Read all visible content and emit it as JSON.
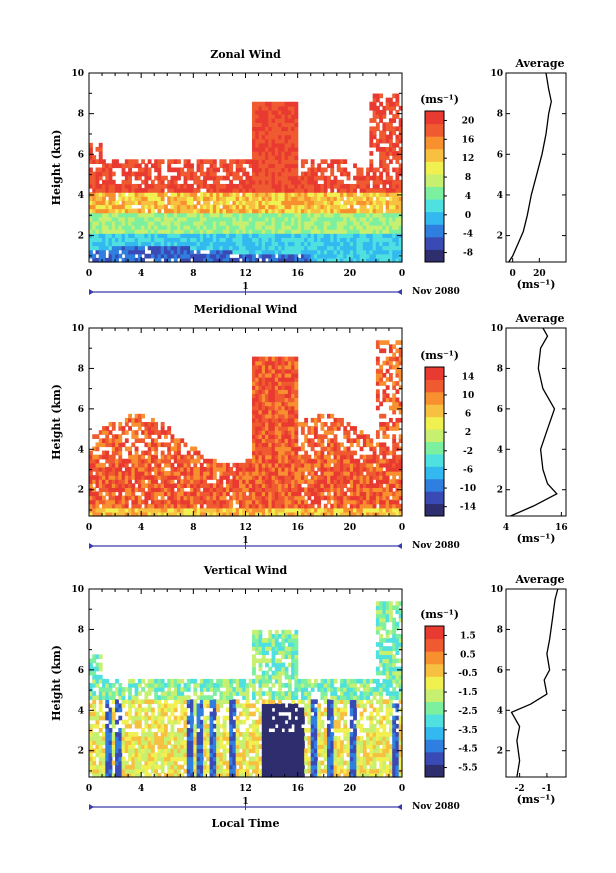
{
  "figure": {
    "date_label": "Nov 2080",
    "day_marker": "1",
    "xlabel_bottom": "Local Time",
    "avg_title": "Average",
    "units": "(ms⁻¹)"
  },
  "colors": {
    "scale": [
      "#2e2d6e",
      "#3a4ab5",
      "#2f7fe0",
      "#34b8f0",
      "#4fe0e0",
      "#7df0a0",
      "#c8f070",
      "#f0f050",
      "#f8c040",
      "#f89030",
      "#f05a30",
      "#e83a30"
    ],
    "white": "#ffffff",
    "axis": "#000000",
    "marker": "#3a3aa8"
  },
  "chart_data": [
    {
      "type": "heatmap",
      "title": "Zonal Wind",
      "ylabel": "Height (km)",
      "xlim": [
        0,
        24
      ],
      "ylim": [
        0.7,
        10
      ],
      "x_ticks": [
        "0",
        "4",
        "8",
        "12",
        "16",
        "20",
        "0"
      ],
      "y_ticks": [
        "2",
        "4",
        "6",
        "8",
        "10"
      ],
      "colorbar": {
        "label": "(ms⁻¹)",
        "ticks": [
          "20",
          "16",
          "12",
          "8",
          "4",
          "0",
          "-4",
          "-8"
        ],
        "range": [
          -10,
          22
        ]
      },
      "profile": {
        "title": "Average",
        "xlim": [
          -5,
          40
        ],
        "x_ticks": [
          "0",
          "20"
        ],
        "x_tick_values": [
          0,
          20
        ],
        "xlabel": "(ms⁻¹)",
        "y_ticks": [
          "2",
          "4",
          "6",
          "8",
          "10"
        ],
        "points": [
          [
            -3,
            0.7
          ],
          [
            0,
            1.0
          ],
          [
            4,
            1.6
          ],
          [
            8,
            2.2
          ],
          [
            11,
            3.0
          ],
          [
            14,
            4.0
          ],
          [
            18,
            5.0
          ],
          [
            22,
            6.0
          ],
          [
            25,
            7.0
          ],
          [
            27,
            8.0
          ],
          [
            29,
            8.6
          ],
          [
            27,
            9.2
          ],
          [
            25,
            10
          ]
        ]
      }
    },
    {
      "type": "heatmap",
      "title": "Meridional Wind",
      "ylabel": "Height (km)",
      "xlim": [
        0,
        24
      ],
      "ylim": [
        0.7,
        10
      ],
      "x_ticks": [
        "0",
        "4",
        "8",
        "12",
        "16",
        "20",
        "0"
      ],
      "y_ticks": [
        "2",
        "4",
        "6",
        "8",
        "10"
      ],
      "colorbar": {
        "label": "(ms⁻¹)",
        "ticks": [
          "14",
          "10",
          "6",
          "2",
          "-2",
          "-6",
          "-10",
          "-14"
        ],
        "range": [
          -16,
          16
        ]
      },
      "profile": {
        "title": "Average",
        "xlim": [
          4,
          17
        ],
        "x_ticks": [
          "4",
          "16"
        ],
        "x_tick_values": [
          4,
          16
        ],
        "xlabel": "(ms⁻¹)",
        "y_ticks": [
          "2",
          "4",
          "6",
          "8",
          "10"
        ],
        "points": [
          [
            5,
            0.7
          ],
          [
            10,
            1.2
          ],
          [
            15,
            1.8
          ],
          [
            13,
            2.3
          ],
          [
            12,
            3.0
          ],
          [
            11.5,
            4.0
          ],
          [
            13,
            5.0
          ],
          [
            14.5,
            6.0
          ],
          [
            12,
            7.0
          ],
          [
            11,
            8.0
          ],
          [
            11.5,
            9.0
          ],
          [
            13,
            9.6
          ],
          [
            12,
            10
          ]
        ]
      }
    },
    {
      "type": "heatmap",
      "title": "Vertical Wind",
      "ylabel": "Height (km)",
      "xlabel": "Local Time",
      "xlim": [
        0,
        24
      ],
      "ylim": [
        0.7,
        10
      ],
      "x_ticks": [
        "0",
        "4",
        "8",
        "12",
        "16",
        "20",
        "0"
      ],
      "y_ticks": [
        "2",
        "4",
        "6",
        "8",
        "10"
      ],
      "colorbar": {
        "label": "(ms⁻¹)",
        "ticks": [
          "1.5",
          "0.5",
          "-0.5",
          "-1.5",
          "-2.5",
          "-3.5",
          "-4.5",
          "-5.5"
        ],
        "range": [
          -6,
          2
        ]
      },
      "profile": {
        "title": "Average",
        "xlim": [
          -2.5,
          -0.3
        ],
        "x_ticks": [
          "-2",
          "-1"
        ],
        "x_tick_values": [
          -2,
          -1
        ],
        "xlabel": "(ms⁻¹)",
        "y_ticks": [
          "2",
          "4",
          "6",
          "8",
          "10"
        ],
        "points": [
          [
            -2.1,
            0.7
          ],
          [
            -2.0,
            1.5
          ],
          [
            -2.1,
            2.5
          ],
          [
            -2.0,
            3.2
          ],
          [
            -2.3,
            3.9
          ],
          [
            -1.6,
            4.3
          ],
          [
            -1.0,
            4.8
          ],
          [
            -1.1,
            5.5
          ],
          [
            -0.9,
            6.0
          ],
          [
            -1.0,
            6.8
          ],
          [
            -0.9,
            7.5
          ],
          [
            -0.8,
            8.5
          ],
          [
            -0.7,
            9.5
          ],
          [
            -0.6,
            10
          ]
        ]
      }
    }
  ]
}
